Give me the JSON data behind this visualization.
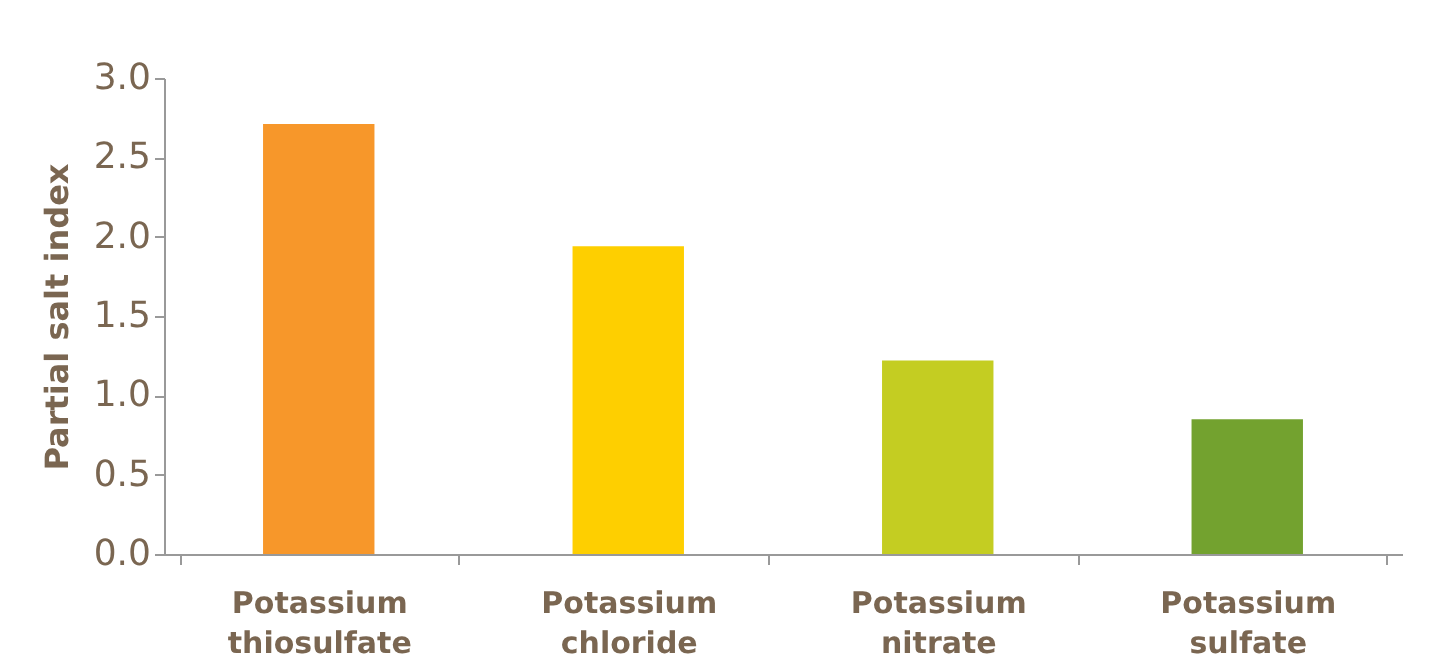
{
  "chart_data": {
    "type": "bar",
    "ylabel": "Partial salt index",
    "categories": [
      "Potassium thiosulfate",
      "Potassium chloride",
      "Potassium nitrate",
      "Potassium sulfate"
    ],
    "values": [
      2.71,
      1.94,
      1.22,
      0.85
    ],
    "colors": [
      "#f7972a",
      "#fecf00",
      "#c4cd22",
      "#73a22f"
    ],
    "ylim": [
      0,
      3
    ],
    "yticks": [
      {
        "value": 0,
        "label": "0.0"
      },
      {
        "value": 0.5,
        "label": "0.5"
      },
      {
        "value": 1,
        "label": "1.0"
      },
      {
        "value": 1.5,
        "label": "1.5"
      },
      {
        "value": 2,
        "label": "2.0"
      },
      {
        "value": 2.5,
        "label": "2.5"
      },
      {
        "value": 3,
        "label": "3.0"
      }
    ],
    "grid": false
  }
}
